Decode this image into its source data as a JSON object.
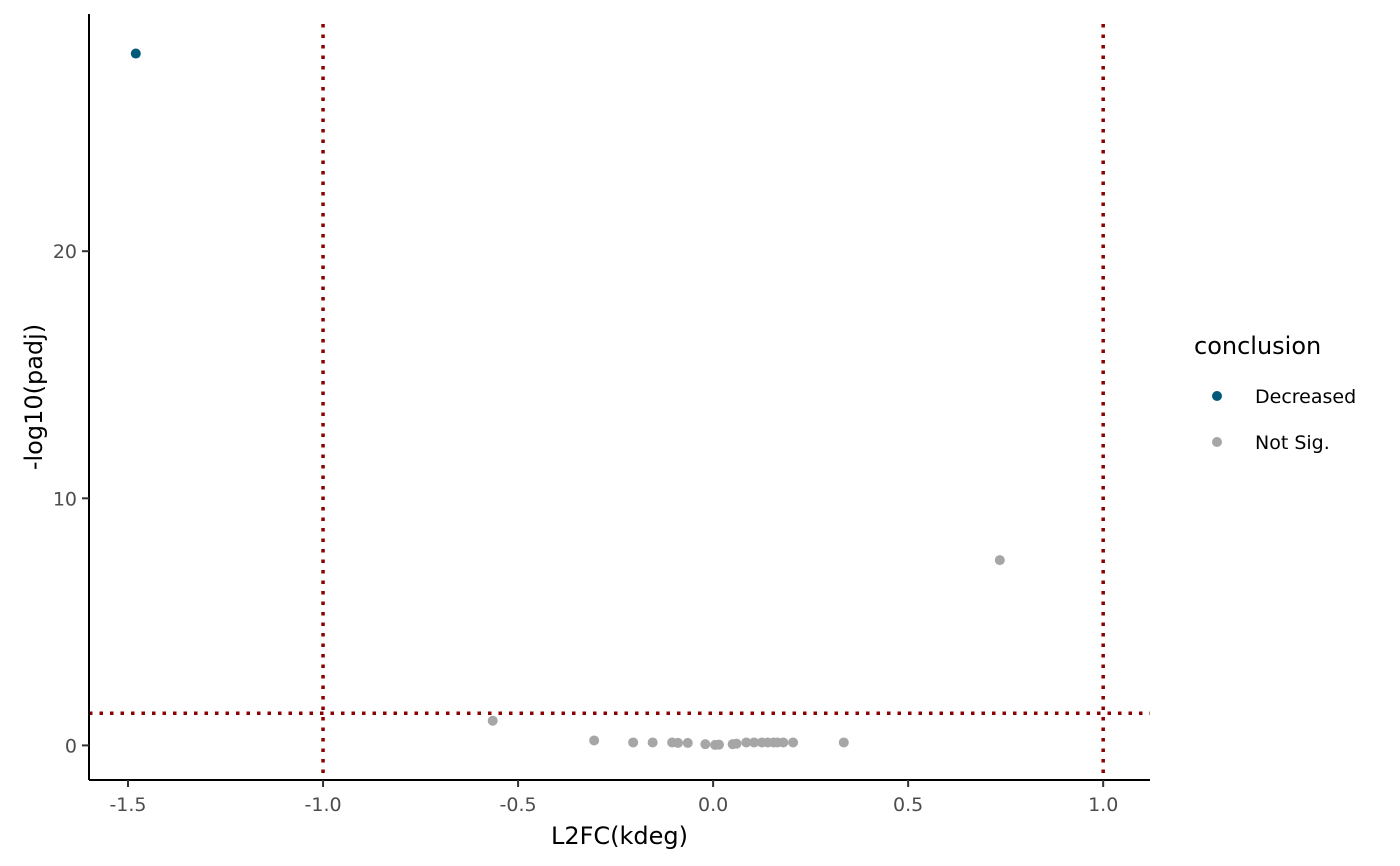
{
  "chart_data": {
    "type": "scatter",
    "xlabel": "L2FC(kdeg)",
    "ylabel": "-log10(padj)",
    "xlim": [
      -1.6,
      1.12
    ],
    "ylim": [
      -1.4,
      29.6
    ],
    "x_ticks": [
      -1.5,
      -1.0,
      -0.5,
      0.0,
      0.5,
      1.0
    ],
    "x_tick_labels": [
      "-1.5",
      "-1.0",
      "-0.5",
      "0.0",
      "0.5",
      "1.0"
    ],
    "y_ticks": [
      0,
      10,
      20
    ],
    "y_tick_labels": [
      "0",
      "10",
      "20"
    ],
    "grid": false,
    "reference_lines": {
      "vertical": [
        -1.0,
        1.0
      ],
      "horizontal": [
        1.3
      ],
      "color": "#8b0000",
      "style": "dotted"
    },
    "legend": {
      "title": "conclusion",
      "position": "right",
      "entries": [
        {
          "label": "Decreased",
          "color": "#005a7a"
        },
        {
          "label": "Not Sig.",
          "color": "#a6a6a6"
        }
      ]
    },
    "series": [
      {
        "name": "Decreased",
        "color": "#005a7a",
        "points": [
          {
            "x": -1.48,
            "y": 28.0
          }
        ]
      },
      {
        "name": "Not Sig.",
        "color": "#a6a6a6",
        "points": [
          {
            "x": 0.735,
            "y": 7.5
          },
          {
            "x": -0.565,
            "y": 1.0
          },
          {
            "x": -0.305,
            "y": 0.2
          },
          {
            "x": -0.205,
            "y": 0.12
          },
          {
            "x": -0.155,
            "y": 0.12
          },
          {
            "x": -0.105,
            "y": 0.12
          },
          {
            "x": -0.09,
            "y": 0.1
          },
          {
            "x": -0.065,
            "y": 0.1
          },
          {
            "x": -0.02,
            "y": 0.05
          },
          {
            "x": 0.005,
            "y": 0.02
          },
          {
            "x": 0.015,
            "y": 0.03
          },
          {
            "x": 0.05,
            "y": 0.05
          },
          {
            "x": 0.06,
            "y": 0.07
          },
          {
            "x": 0.085,
            "y": 0.12
          },
          {
            "x": 0.105,
            "y": 0.12
          },
          {
            "x": 0.125,
            "y": 0.12
          },
          {
            "x": 0.14,
            "y": 0.12
          },
          {
            "x": 0.155,
            "y": 0.12
          },
          {
            "x": 0.165,
            "y": 0.12
          },
          {
            "x": 0.18,
            "y": 0.12
          },
          {
            "x": 0.205,
            "y": 0.12
          },
          {
            "x": 0.335,
            "y": 0.12
          }
        ]
      }
    ]
  }
}
